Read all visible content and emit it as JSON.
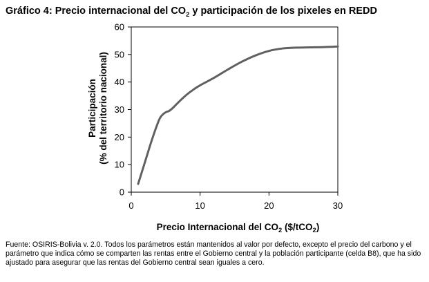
{
  "title": {
    "prefix": "Gráfico 4: Precio internacional del CO",
    "sub": "2",
    "suffix": " y participación de los pixeles en REDD"
  },
  "source_note": "Fuente: OSIRIS-Bolivia v. 2.0. Todos los parámetros están mantenidos al valor por defecto, excepto el precio del carbono y el parámetro que indica cómo se comparten las rentas entre el Gobierno central y la población participante (celda B8), que ha sido ajustado para asegurar que las rentas del Gobierno central sean iguales a cero.",
  "colors": {
    "line": "#606060",
    "axis": "#000000"
  },
  "chart_data": {
    "type": "line",
    "title": "Precio internacional del CO2 y participación de los pixeles en REDD",
    "xlabel": "Precio Internacional del CO2 ($/tCO2)",
    "xlabel_parts": [
      "Precio Internacional del CO",
      "2",
      " ($/tCO",
      "2",
      ")"
    ],
    "ylabel_lines": [
      "Participación",
      "(% del territorio nacional)"
    ],
    "xlim": [
      0,
      30
    ],
    "ylim": [
      0,
      60
    ],
    "xticks": [
      0,
      10,
      20,
      30
    ],
    "yticks": [
      0,
      10,
      20,
      30,
      40,
      50,
      60
    ],
    "grid": false,
    "x": [
      1,
      2,
      3,
      4,
      4.5,
      5,
      5.5,
      6,
      7,
      8,
      9,
      10,
      12,
      14,
      16,
      18,
      20,
      22,
      24,
      26,
      28,
      30
    ],
    "y": [
      3,
      11,
      19,
      26,
      28,
      29,
      29.5,
      30.5,
      33,
      35.3,
      37.2,
      38.8,
      41.5,
      44.5,
      47.3,
      49.6,
      51.3,
      52.2,
      52.5,
      52.6,
      52.7,
      52.9
    ]
  }
}
